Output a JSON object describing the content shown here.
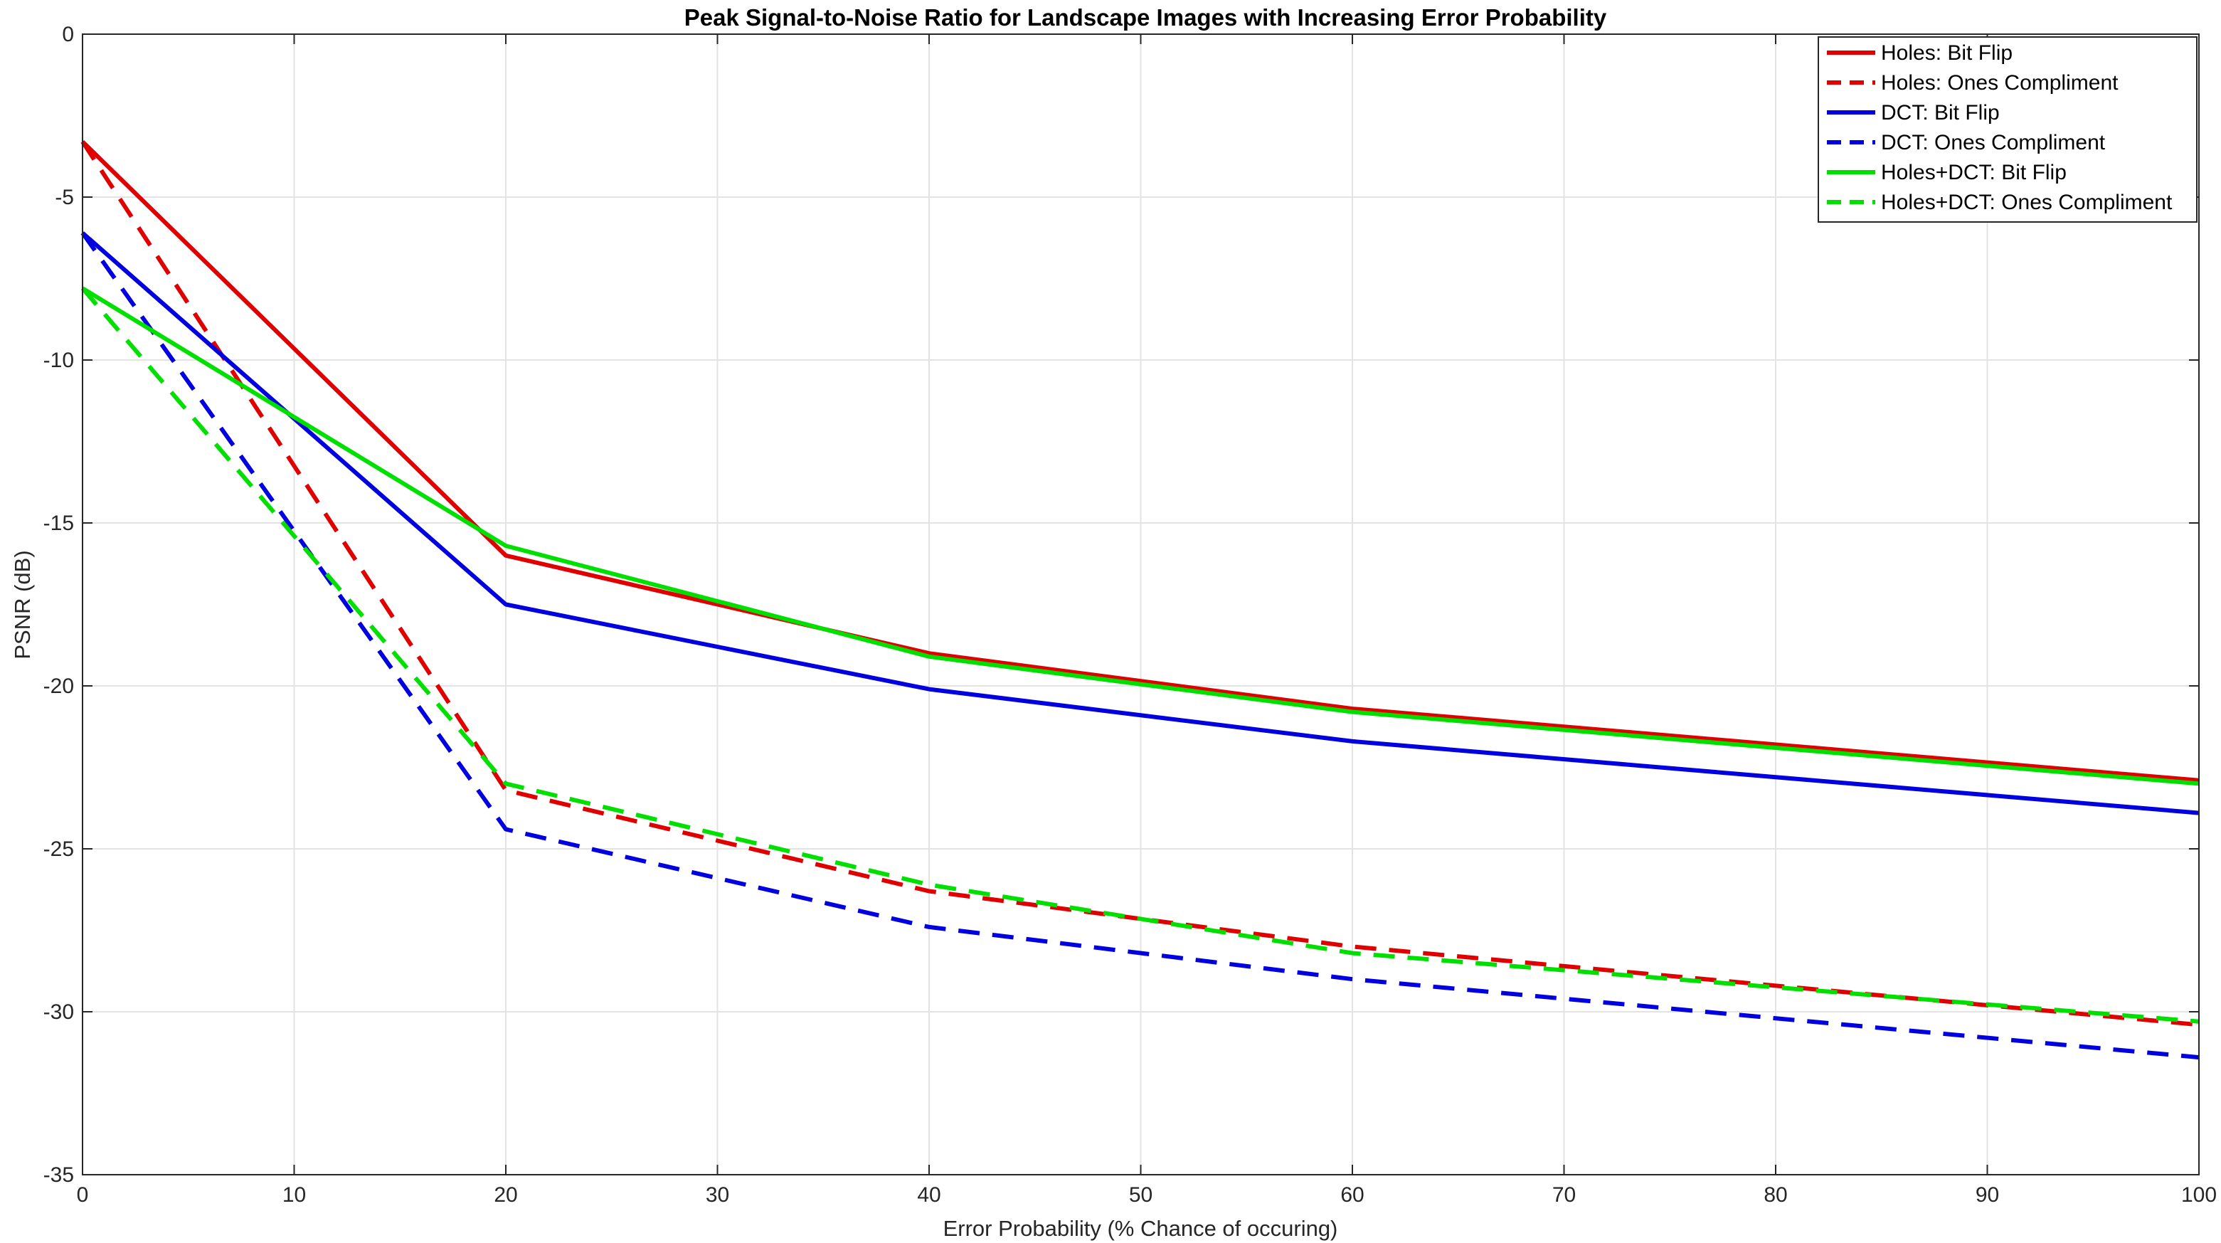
{
  "chart_data": {
    "type": "line",
    "title": "Peak Signal-to-Noise Ratio for Landscape Images with Increasing Error Probability",
    "xlabel": "Error Probability (% Chance of occuring)",
    "ylabel": "PSNR (dB)",
    "xlim": [
      0,
      100
    ],
    "ylim": [
      -35,
      0
    ],
    "xticks": [
      0,
      10,
      20,
      30,
      40,
      50,
      60,
      70,
      80,
      90,
      100
    ],
    "yticks": [
      0,
      -5,
      -10,
      -15,
      -20,
      -25,
      -30,
      -35
    ],
    "grid": true,
    "legend_position": "top-right",
    "x": [
      0,
      20,
      40,
      60,
      100
    ],
    "series": [
      {
        "name": "Holes: Bit Flip",
        "color": "#e00000",
        "style": "solid",
        "values": [
          -3.3,
          -16.0,
          -19.0,
          -20.7,
          -22.9
        ]
      },
      {
        "name": "Holes: Ones Compliment",
        "color": "#e00000",
        "style": "dashed",
        "values": [
          -3.3,
          -23.2,
          -26.3,
          -28.0,
          -30.4
        ]
      },
      {
        "name": "DCT: Bit Flip",
        "color": "#0000e0",
        "style": "solid",
        "values": [
          -6.1,
          -17.5,
          -20.1,
          -21.7,
          -23.9
        ]
      },
      {
        "name": "DCT: Ones Compliment",
        "color": "#0000e0",
        "style": "dashed",
        "values": [
          -6.1,
          -24.4,
          -27.4,
          -29.0,
          -31.4
        ]
      },
      {
        "name": "Holes+DCT: Bit Flip",
        "color": "#00e000",
        "style": "solid",
        "values": [
          -7.8,
          -15.7,
          -19.1,
          -20.8,
          -23.0
        ]
      },
      {
        "name": "Holes+DCT: Ones Compliment",
        "color": "#00e000",
        "style": "dashed",
        "values": [
          -7.8,
          -23.0,
          -26.1,
          -28.2,
          -30.3
        ]
      }
    ]
  }
}
